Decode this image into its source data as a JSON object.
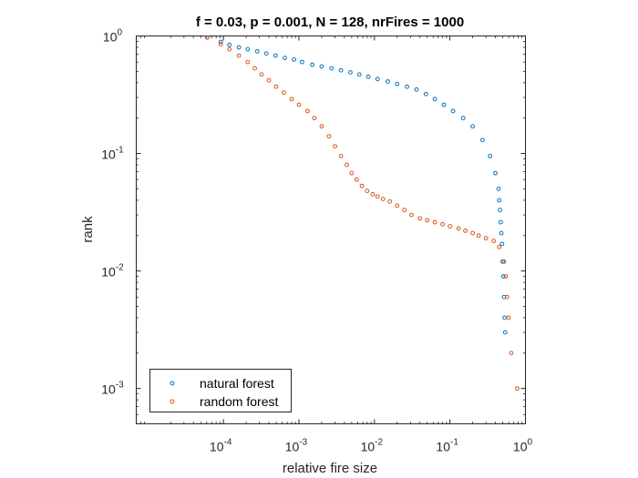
{
  "chart_data": {
    "type": "scatter",
    "title": "f = 0.03, p = 0.001, N = 128, nrFires = 1000",
    "xlabel": "relative fire size",
    "ylabel": "rank",
    "xscale": "log",
    "yscale": "log",
    "xlim": [
      7e-06,
      1.0
    ],
    "ylim": [
      0.0005,
      1.0
    ],
    "grid": false,
    "legend_position": "bottom-left",
    "x_ticks": [
      {
        "value": 0.0001,
        "base": "10",
        "exp": "-4"
      },
      {
        "value": 0.001,
        "base": "10",
        "exp": "-3"
      },
      {
        "value": 0.01,
        "base": "10",
        "exp": "-2"
      },
      {
        "value": 0.1,
        "base": "10",
        "exp": "-1"
      },
      {
        "value": 1,
        "base": "10",
        "exp": "0"
      }
    ],
    "y_ticks": [
      {
        "value": 0.001,
        "base": "10",
        "exp": "-3"
      },
      {
        "value": 0.01,
        "base": "10",
        "exp": "-2"
      },
      {
        "value": 0.1,
        "base": "10",
        "exp": "-1"
      },
      {
        "value": 1,
        "base": "10",
        "exp": "0"
      }
    ],
    "series": [
      {
        "name": "natural forest",
        "color": "#0072BD",
        "marker": "circle-open",
        "x": [
          6.1e-05,
          9.2e-05,
          0.00012,
          0.00016,
          0.00021,
          0.00028,
          0.00037,
          0.00049,
          0.00065,
          0.00086,
          0.0011,
          0.0015,
          0.002,
          0.0027,
          0.0036,
          0.0048,
          0.0063,
          0.0083,
          0.011,
          0.015,
          0.02,
          0.027,
          0.036,
          0.048,
          0.063,
          0.083,
          0.11,
          0.15,
          0.2,
          0.27,
          0.34,
          0.4,
          0.44,
          0.45,
          0.46,
          0.47,
          0.48,
          0.49,
          0.5,
          0.51,
          0.52,
          0.53,
          0.54
        ],
        "y": [
          0.97,
          0.89,
          0.84,
          0.8,
          0.77,
          0.74,
          0.71,
          0.68,
          0.65,
          0.63,
          0.6,
          0.57,
          0.55,
          0.53,
          0.51,
          0.49,
          0.47,
          0.45,
          0.43,
          0.41,
          0.39,
          0.37,
          0.35,
          0.32,
          0.29,
          0.26,
          0.23,
          0.2,
          0.17,
          0.13,
          0.095,
          0.068,
          0.05,
          0.04,
          0.033,
          0.026,
          0.021,
          0.017,
          0.012,
          0.009,
          0.006,
          0.004,
          0.003
        ]
      },
      {
        "name": "random forest",
        "color": "#D95319",
        "marker": "circle-open",
        "x": [
          6.1e-05,
          9.2e-05,
          0.00012,
          0.00016,
          0.00021,
          0.00026,
          0.00032,
          0.0004,
          0.0005,
          0.00063,
          0.0008,
          0.001,
          0.0013,
          0.0016,
          0.002,
          0.0025,
          0.003,
          0.0036,
          0.0043,
          0.005,
          0.0058,
          0.0068,
          0.008,
          0.0095,
          0.011,
          0.013,
          0.016,
          0.02,
          0.025,
          0.031,
          0.04,
          0.05,
          0.063,
          0.08,
          0.1,
          0.13,
          0.16,
          0.2,
          0.24,
          0.3,
          0.38,
          0.45,
          0.52,
          0.55,
          0.57,
          0.6,
          0.65,
          0.78
        ],
        "y": [
          0.97,
          0.85,
          0.77,
          0.68,
          0.6,
          0.53,
          0.47,
          0.42,
          0.37,
          0.33,
          0.29,
          0.26,
          0.23,
          0.2,
          0.17,
          0.14,
          0.115,
          0.095,
          0.08,
          0.068,
          0.06,
          0.053,
          0.048,
          0.045,
          0.043,
          0.041,
          0.039,
          0.036,
          0.033,
          0.03,
          0.028,
          0.027,
          0.026,
          0.025,
          0.024,
          0.023,
          0.022,
          0.021,
          0.02,
          0.019,
          0.018,
          0.016,
          0.012,
          0.009,
          0.006,
          0.004,
          0.002,
          0.001
        ]
      }
    ]
  }
}
